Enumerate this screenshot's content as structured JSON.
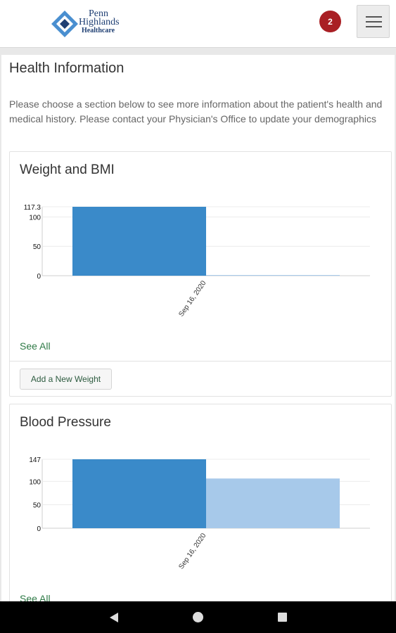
{
  "header": {
    "logo": {
      "line1": "Penn",
      "line2": "Highlands",
      "line3": "Healthcare"
    },
    "notification_count": "2",
    "menu_icon": "hamburger-icon"
  },
  "page": {
    "title": "Health Information",
    "intro": "Please choose a section below to see more information about the patient's health and medical history. Please contact your Physician's Office to update your demographics"
  },
  "weight_card": {
    "title": "Weight and BMI",
    "see_all": "See All",
    "add_button": "Add a New Weight"
  },
  "bp_card": {
    "title": "Blood Pressure",
    "see_all": "See All"
  },
  "colors": {
    "bar_primary": "#3a8ac9",
    "bar_secondary": "#a7c9ea",
    "link": "#2e7a46",
    "badge": "#a91f24"
  },
  "chart_data": [
    {
      "type": "bar",
      "categories": [
        "Sep 16, 2020"
      ],
      "series": [
        {
          "values": [
            117.3
          ]
        },
        {
          "values": [
            0
          ]
        }
      ],
      "y_ticks": [
        "117.3",
        "100",
        "50",
        "0"
      ],
      "ylim": [
        0,
        117.3
      ],
      "grid": true
    },
    {
      "type": "bar",
      "categories": [
        "Sep 16, 2020"
      ],
      "series": [
        {
          "values": [
            147
          ]
        },
        {
          "values": [
            106
          ]
        }
      ],
      "y_ticks": [
        "147",
        "100",
        "50",
        "0"
      ],
      "ylim": [
        0,
        147
      ],
      "grid": true
    }
  ],
  "nav": {
    "back_icon": "back-triangle-icon",
    "home_icon": "home-circle-icon",
    "recent_icon": "recent-square-icon"
  }
}
